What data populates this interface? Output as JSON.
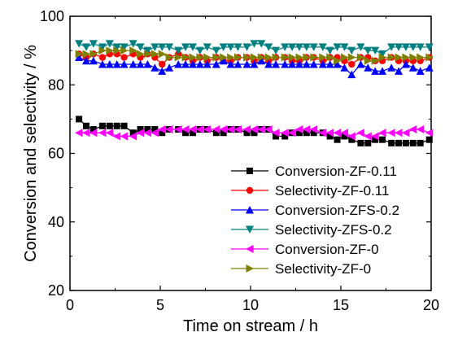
{
  "chart_data": {
    "type": "line",
    "title": "",
    "xlabel": "Time on stream / h",
    "ylabel": "Conversion and selectivity / %",
    "xlim": [
      0,
      20
    ],
    "ylim": [
      20,
      100
    ],
    "xticks": [
      "0",
      "5",
      "10",
      "15",
      "20"
    ],
    "yticks": [
      "20",
      "40",
      "60",
      "80",
      "100"
    ],
    "grid": false,
    "legend_position": "bottom-right",
    "series": [
      {
        "name": "Conversion-ZF-0.11",
        "color": "#000000",
        "marker": "square",
        "x": [
          0.5,
          0.9,
          1.3,
          1.8,
          2.2,
          2.6,
          3.0,
          3.5,
          3.9,
          4.3,
          4.7,
          5.1,
          5.5,
          6.0,
          6.4,
          6.8,
          7.2,
          7.6,
          8.1,
          8.5,
          8.9,
          9.3,
          9.8,
          10.2,
          10.6,
          11.0,
          11.4,
          11.9,
          12.3,
          12.7,
          13.1,
          13.5,
          14.0,
          14.4,
          14.8,
          15.2,
          15.6,
          16.1,
          16.5,
          16.9,
          17.3,
          17.8,
          18.2,
          18.6,
          19.0,
          19.4,
          19.9
        ],
        "y": [
          70,
          68,
          67,
          68,
          68,
          68,
          68,
          66,
          67,
          67,
          67,
          66,
          67,
          67,
          66,
          66,
          67,
          67,
          66,
          66,
          67,
          67,
          66,
          66,
          67,
          67,
          65,
          65,
          66,
          66,
          66,
          66,
          66,
          65,
          64,
          65,
          64,
          63,
          63,
          64,
          64,
          63,
          63,
          63,
          63,
          63,
          64
        ]
      },
      {
        "name": "Selectivity-ZF-0.11",
        "color": "#ff0000",
        "marker": "circle",
        "x": [
          0.5,
          0.9,
          1.3,
          1.8,
          2.2,
          2.6,
          3.0,
          3.5,
          3.9,
          4.3,
          4.7,
          5.1,
          5.5,
          6.0,
          6.4,
          6.8,
          7.2,
          7.6,
          8.1,
          8.5,
          8.9,
          9.3,
          9.8,
          10.2,
          10.6,
          11.0,
          11.4,
          11.9,
          12.3,
          12.7,
          13.1,
          13.5,
          14.0,
          14.4,
          14.8,
          15.2,
          15.6,
          16.1,
          16.5,
          16.9,
          17.3,
          17.8,
          18.2,
          18.6,
          19.0,
          19.4,
          19.9
        ],
        "y": [
          89,
          88,
          89,
          88,
          89,
          89,
          88,
          89,
          88,
          89,
          88,
          86,
          88,
          89,
          88,
          87,
          88,
          87,
          88,
          87,
          87,
          88,
          88,
          87,
          88,
          87,
          88,
          88,
          87,
          87,
          88,
          88,
          87,
          88,
          88,
          87,
          86,
          88,
          88,
          87,
          87,
          88,
          87,
          87,
          87,
          87,
          88
        ]
      },
      {
        "name": "Conversion-ZFS-0.2",
        "color": "#0000ff",
        "marker": "triangle-up",
        "x": [
          0.5,
          0.9,
          1.3,
          1.8,
          2.2,
          2.6,
          3.0,
          3.5,
          3.9,
          4.3,
          4.7,
          5.1,
          5.5,
          6.0,
          6.4,
          6.8,
          7.2,
          7.6,
          8.1,
          8.5,
          8.9,
          9.3,
          9.8,
          10.2,
          10.6,
          11.0,
          11.4,
          11.9,
          12.3,
          12.7,
          13.1,
          13.5,
          14.0,
          14.4,
          14.8,
          15.2,
          15.6,
          16.1,
          16.5,
          16.9,
          17.3,
          17.8,
          18.2,
          18.6,
          19.0,
          19.4,
          19.9
        ],
        "y": [
          88,
          87,
          87,
          86,
          86,
          86,
          86,
          86,
          86,
          86,
          85,
          84,
          85,
          86,
          86,
          86,
          86,
          86,
          86,
          87,
          86,
          86,
          86,
          86,
          87,
          86,
          86,
          86,
          86,
          86,
          86,
          86,
          86,
          86,
          86,
          85,
          83,
          86,
          85,
          84,
          84,
          85,
          84,
          86,
          85,
          84,
          85
        ]
      },
      {
        "name": "Selectivity-ZFS-0.2",
        "color": "#008080",
        "marker": "triangle-down",
        "x": [
          0.5,
          0.9,
          1.3,
          1.8,
          2.2,
          2.6,
          3.0,
          3.5,
          3.9,
          4.3,
          4.7,
          5.1,
          5.5,
          6.0,
          6.4,
          6.8,
          7.2,
          7.6,
          8.1,
          8.5,
          8.9,
          9.3,
          9.8,
          10.2,
          10.6,
          11.0,
          11.4,
          11.9,
          12.3,
          12.7,
          13.1,
          13.5,
          14.0,
          14.4,
          14.8,
          15.2,
          15.6,
          16.1,
          16.5,
          16.9,
          17.3,
          17.8,
          18.2,
          18.6,
          19.0,
          19.4,
          19.9
        ],
        "y": [
          92,
          91,
          92,
          91,
          92,
          91,
          91,
          92,
          91,
          90,
          91,
          91,
          91,
          90,
          91,
          91,
          90,
          91,
          90,
          91,
          91,
          91,
          91,
          92,
          92,
          91,
          90,
          91,
          91,
          91,
          91,
          91,
          91,
          90,
          91,
          91,
          90,
          91,
          90,
          90,
          89,
          91,
          91,
          91,
          91,
          91,
          91
        ]
      },
      {
        "name": "Conversion-ZF-0",
        "color": "#ff00ff",
        "marker": "triangle-left",
        "x": [
          0.5,
          0.9,
          1.3,
          1.8,
          2.2,
          2.6,
          3.0,
          3.5,
          3.9,
          4.3,
          4.7,
          5.1,
          5.5,
          6.0,
          6.4,
          6.8,
          7.2,
          7.6,
          8.1,
          8.5,
          8.9,
          9.3,
          9.8,
          10.2,
          10.6,
          11.0,
          11.4,
          11.9,
          12.3,
          12.7,
          13.1,
          13.5,
          14.0,
          14.4,
          14.8,
          15.2,
          15.6,
          16.1,
          16.5,
          16.9,
          17.3,
          17.8,
          18.2,
          18.6,
          19.0,
          19.4,
          19.9
        ],
        "y": [
          66,
          66,
          66,
          66,
          66,
          65,
          65,
          65,
          66,
          66,
          66,
          67,
          67,
          67,
          67,
          67,
          67,
          67,
          67,
          67,
          67,
          67,
          67,
          67,
          67,
          67,
          66,
          66,
          66,
          67,
          67,
          67,
          66,
          66,
          66,
          66,
          65,
          66,
          65,
          65,
          66,
          66,
          66,
          66,
          67,
          67,
          66
        ]
      },
      {
        "name": "Selectivity-ZF-0",
        "color": "#808000",
        "marker": "triangle-right",
        "x": [
          0.5,
          0.9,
          1.3,
          1.8,
          2.2,
          2.6,
          3.0,
          3.5,
          3.9,
          4.3,
          4.7,
          5.1,
          5.5,
          6.0,
          6.4,
          6.8,
          7.2,
          7.6,
          8.1,
          8.5,
          8.9,
          9.3,
          9.8,
          10.2,
          10.6,
          11.0,
          11.4,
          11.9,
          12.3,
          12.7,
          13.1,
          13.5,
          14.0,
          14.4,
          14.8,
          15.2,
          15.6,
          16.1,
          16.5,
          16.9,
          17.3,
          17.8,
          18.2,
          18.6,
          19.0,
          19.4,
          19.9
        ],
        "y": [
          89,
          89,
          89,
          90,
          90,
          90,
          90,
          90,
          89,
          89,
          89,
          89,
          88,
          88,
          88,
          88,
          88,
          88,
          88,
          88,
          88,
          88,
          88,
          88,
          88,
          88,
          88,
          88,
          88,
          88,
          88,
          88,
          88,
          88,
          87,
          88,
          88,
          88,
          87,
          87,
          88,
          88,
          88,
          88,
          88,
          88,
          88
        ]
      }
    ]
  }
}
